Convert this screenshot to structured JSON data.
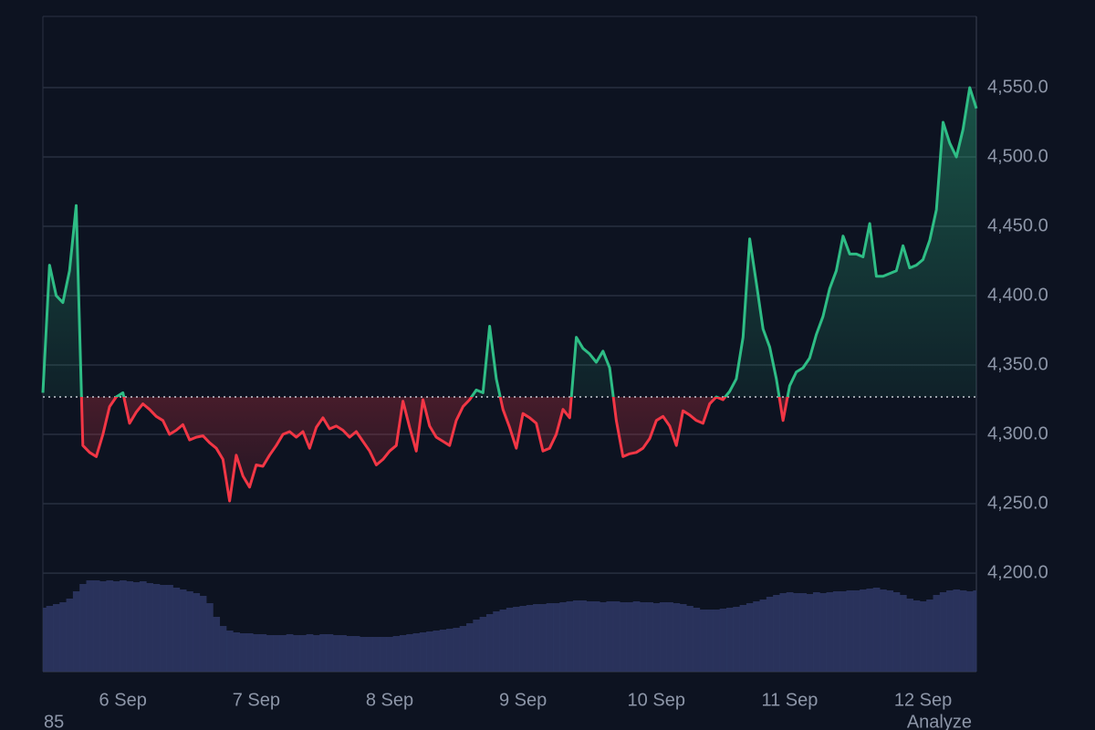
{
  "chart_data": {
    "type": "baseline",
    "categories": [
      null,
      null,
      null,
      null,
      null,
      null,
      null,
      null,
      null,
      null,
      null,
      null,
      "6 Sep",
      null,
      null,
      null,
      null,
      null,
      null,
      null,
      null,
      null,
      null,
      null,
      null,
      null,
      null,
      null,
      null,
      null,
      null,
      null,
      "7 Sep",
      null,
      null,
      null,
      null,
      null,
      null,
      null,
      null,
      null,
      null,
      null,
      null,
      null,
      null,
      null,
      null,
      null,
      null,
      null,
      "8 Sep",
      null,
      null,
      null,
      null,
      null,
      null,
      null,
      null,
      null,
      null,
      null,
      null,
      null,
      null,
      null,
      null,
      null,
      null,
      null,
      "9 Sep",
      null,
      null,
      null,
      null,
      null,
      null,
      null,
      null,
      null,
      null,
      null,
      null,
      null,
      null,
      null,
      null,
      null,
      null,
      null,
      "10 Sep",
      null,
      null,
      null,
      null,
      null,
      null,
      null,
      null,
      null,
      null,
      null,
      null,
      null,
      null,
      null,
      null,
      null,
      null,
      null,
      "11 Sep",
      null,
      null,
      null,
      null,
      null,
      null,
      null,
      null,
      null,
      null,
      null,
      null,
      null,
      null,
      null,
      null,
      null,
      null,
      null,
      "12 Sep",
      null,
      null,
      null,
      null,
      null,
      null,
      null,
      null
    ],
    "values": [
      4330,
      4422,
      4400,
      4395,
      4418,
      4465,
      4292,
      4287,
      4284,
      4300,
      4320,
      4327,
      4330,
      4308,
      4316,
      4322,
      4318,
      4313,
      4310,
      4300,
      4303,
      4307,
      4296,
      4298,
      4299,
      4294,
      4290,
      4282,
      4252,
      4285,
      4270,
      4262,
      4278,
      4277,
      4285,
      4292,
      4300,
      4302,
      4298,
      4302,
      4290,
      4305,
      4312,
      4304,
      4306,
      4303,
      4298,
      4302,
      4295,
      4288,
      4278,
      4282,
      4288,
      4292,
      4324,
      4305,
      4288,
      4325,
      4306,
      4298,
      4295,
      4292,
      4310,
      4320,
      4325,
      4332,
      4330,
      4378,
      4340,
      4318,
      4305,
      4290,
      4315,
      4312,
      4308,
      4288,
      4290,
      4300,
      4318,
      4312,
      4370,
      4362,
      4358,
      4352,
      4360,
      4348,
      4310,
      4284,
      4286,
      4287,
      4290,
      4297,
      4310,
      4313,
      4306,
      4292,
      4317,
      4314,
      4310,
      4308,
      4322,
      4327,
      4325,
      4331,
      4340,
      4370,
      4441,
      4409,
      4376,
      4363,
      4340,
      4310,
      4335,
      4345,
      4348,
      4355,
      4372,
      4385,
      4405,
      4418,
      4443,
      4430,
      4430,
      4428,
      4452,
      4414,
      4414,
      4416,
      4418,
      4436,
      4420,
      4422,
      4426,
      4440,
      4462,
      4525,
      4510,
      4500,
      4520,
      4550,
      4535
    ],
    "volume": [
      70,
      72,
      74,
      76,
      80,
      88,
      96,
      100,
      100,
      99,
      100,
      99,
      100,
      99,
      98,
      99,
      97,
      96,
      95,
      95,
      92,
      90,
      88,
      86,
      83,
      75,
      60,
      50,
      45,
      43,
      42,
      42,
      41,
      41,
      40,
      40,
      40,
      41,
      40,
      40,
      41,
      40,
      41,
      41,
      40,
      40,
      39,
      39,
      38,
      38,
      38,
      38,
      38,
      39,
      40,
      41,
      42,
      43,
      44,
      45,
      46,
      47,
      48,
      50,
      53,
      57,
      60,
      63,
      66,
      68,
      70,
      71,
      72,
      73,
      74,
      74,
      75,
      75,
      76,
      77,
      78,
      78,
      77,
      77,
      76,
      77,
      77,
      76,
      76,
      77,
      76,
      76,
      75,
      76,
      76,
      75,
      74,
      72,
      70,
      68,
      68,
      68,
      69,
      70,
      71,
      73,
      75,
      77,
      79,
      82,
      84,
      86,
      87,
      86,
      86,
      85,
      87,
      86,
      87,
      88,
      88,
      89,
      89,
      90,
      91,
      92,
      90,
      89,
      87,
      84,
      80,
      78,
      77,
      79,
      84,
      87,
      89,
      90,
      89,
      88,
      89
    ],
    "baseline": 4327,
    "color_up": "#2ebd85",
    "color_down": "#f23645",
    "volume_color": "#2c3662",
    "ylim": [
      4129,
      4601.3
    ],
    "yticks": [
      {
        "value": 4200,
        "label": "4,200.0"
      },
      {
        "value": 4250,
        "label": "4,250.0"
      },
      {
        "value": 4300,
        "label": "4,300.0"
      },
      {
        "value": 4350,
        "label": "4,350.0"
      },
      {
        "value": 4400,
        "label": "4,400.0"
      },
      {
        "value": 4450,
        "label": "4,450.0"
      },
      {
        "value": 4500,
        "label": "4,500.0"
      },
      {
        "value": 4550,
        "label": "4,550.0"
      }
    ],
    "y2lim": [
      0,
      718
    ],
    "grid": true
  },
  "footer": {
    "left": "85",
    "right": "Analyze"
  }
}
